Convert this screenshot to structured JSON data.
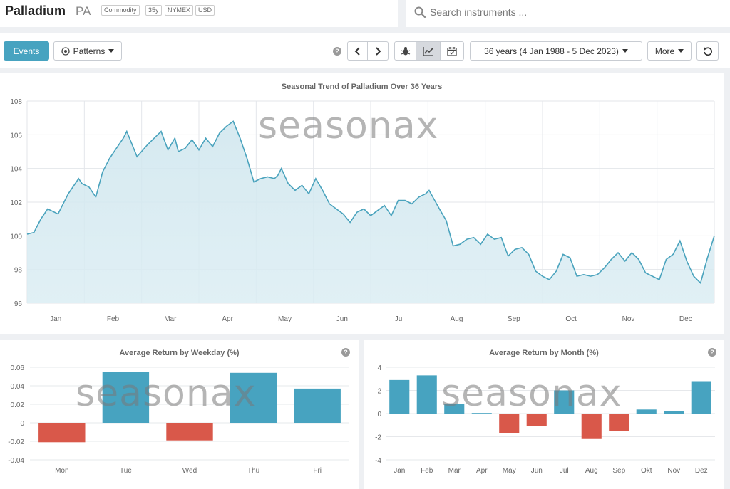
{
  "instrument": {
    "name": "Palladium",
    "symbol": "PA",
    "tags": [
      "Commodity",
      "35y",
      "NYMEX",
      "USD"
    ]
  },
  "search": {
    "placeholder": "Search instruments ..."
  },
  "toolbar": {
    "events_label": "Events",
    "patterns_label": "Patterns",
    "range_label": "36 years (4 Jan 1988 - 5 Dec 2023)",
    "more_label": "More",
    "help_icon": "?",
    "icons": [
      "help-icon",
      "prev-icon",
      "next-icon",
      "bug-icon",
      "line-chart-icon",
      "calendar-icon",
      "reset-icon"
    ]
  },
  "watermark": "seasonax",
  "colors": {
    "accent": "#47a3c0",
    "negative": "#d9584a",
    "line": "#4aa3bd"
  },
  "chart_data": [
    {
      "type": "area",
      "title": "Seasonal Trend of Palladium Over 36 Years",
      "ylim": [
        96,
        108
      ],
      "yticks": [
        96,
        98,
        100,
        102,
        104,
        106,
        108
      ],
      "months": [
        "Jan",
        "Feb",
        "Mar",
        "Apr",
        "May",
        "Jun",
        "Jul",
        "Aug",
        "Sep",
        "Oct",
        "Nov",
        "Dec"
      ],
      "x": [
        0,
        0.01,
        0.02,
        0.03,
        0.045,
        0.06,
        0.075,
        0.08,
        0.09,
        0.1,
        0.11,
        0.12,
        0.13,
        0.14,
        0.145,
        0.16,
        0.175,
        0.185,
        0.195,
        0.205,
        0.215,
        0.22,
        0.23,
        0.24,
        0.25,
        0.26,
        0.27,
        0.28,
        0.29,
        0.3,
        0.31,
        0.32,
        0.33,
        0.34,
        0.35,
        0.36,
        0.365,
        0.37,
        0.38,
        0.39,
        0.4,
        0.41,
        0.42,
        0.43,
        0.44,
        0.45,
        0.46,
        0.47,
        0.48,
        0.49,
        0.5,
        0.51,
        0.52,
        0.53,
        0.54,
        0.55,
        0.56,
        0.57,
        0.58,
        0.585,
        0.6,
        0.61,
        0.62,
        0.63,
        0.64,
        0.65,
        0.66,
        0.67,
        0.68,
        0.69,
        0.7,
        0.71,
        0.72,
        0.73,
        0.74,
        0.75,
        0.76,
        0.77,
        0.78,
        0.79,
        0.8,
        0.81,
        0.82,
        0.83,
        0.84,
        0.85,
        0.86,
        0.87,
        0.88,
        0.89,
        0.9,
        0.91,
        0.92,
        0.93,
        0.94,
        0.95,
        0.96,
        0.97,
        0.98,
        0.99,
        1.0
      ],
      "values": [
        100.1,
        100.2,
        101.0,
        101.6,
        101.3,
        102.5,
        103.4,
        103.1,
        102.9,
        102.3,
        103.8,
        104.6,
        105.2,
        105.8,
        106.2,
        104.7,
        105.4,
        105.8,
        106.2,
        105.1,
        105.8,
        105.0,
        105.2,
        105.7,
        105.1,
        105.8,
        105.3,
        106.1,
        106.5,
        106.8,
        105.8,
        104.6,
        103.2,
        103.4,
        103.5,
        103.4,
        103.6,
        104.0,
        103.1,
        102.7,
        103.0,
        102.5,
        103.4,
        102.7,
        101.9,
        101.6,
        101.3,
        100.8,
        101.4,
        101.6,
        101.2,
        101.5,
        101.8,
        101.2,
        102.1,
        102.1,
        101.9,
        102.3,
        102.5,
        102.7,
        101.6,
        100.9,
        99.4,
        99.5,
        99.8,
        99.9,
        99.5,
        100.1,
        99.8,
        99.9,
        98.8,
        99.2,
        99.3,
        98.9,
        97.9,
        97.6,
        97.4,
        97.9,
        98.9,
        98.7,
        97.6,
        97.7,
        97.6,
        97.7,
        98.1,
        98.6,
        99.0,
        98.5,
        99.0,
        98.6,
        97.8,
        97.6,
        97.4,
        98.6,
        98.9,
        99.7,
        98.5,
        97.6,
        97.2,
        98.7,
        100.0
      ]
    },
    {
      "type": "bar",
      "title": "Average Return by Weekday (%)",
      "categories": [
        "Mon",
        "Tue",
        "Wed",
        "Thu",
        "Fri"
      ],
      "values": [
        -0.021,
        0.055,
        -0.019,
        0.054,
        0.037
      ],
      "ylim": [
        -0.04,
        0.06
      ],
      "yticks": [
        -0.04,
        -0.02,
        0,
        0.02,
        0.04,
        0.06
      ],
      "ytick_labels": [
        "-0.04",
        "-0.02",
        "0",
        "0.02",
        "0.04",
        "0.06"
      ]
    },
    {
      "type": "bar",
      "title": "Average Return by Month (%)",
      "categories": [
        "Jan",
        "Feb",
        "Mar",
        "Apr",
        "May",
        "Jun",
        "Jul",
        "Aug",
        "Sep",
        "Okt",
        "Nov",
        "Dez"
      ],
      "values": [
        2.9,
        3.3,
        0.8,
        0.05,
        -1.7,
        -1.1,
        2.0,
        -2.2,
        -1.5,
        0.35,
        0.2,
        2.8
      ],
      "ylim": [
        -4,
        4
      ],
      "yticks": [
        -4,
        -2,
        0,
        2,
        4
      ],
      "ytick_labels": [
        "-4",
        "-2",
        "0",
        "2",
        "4"
      ]
    }
  ]
}
